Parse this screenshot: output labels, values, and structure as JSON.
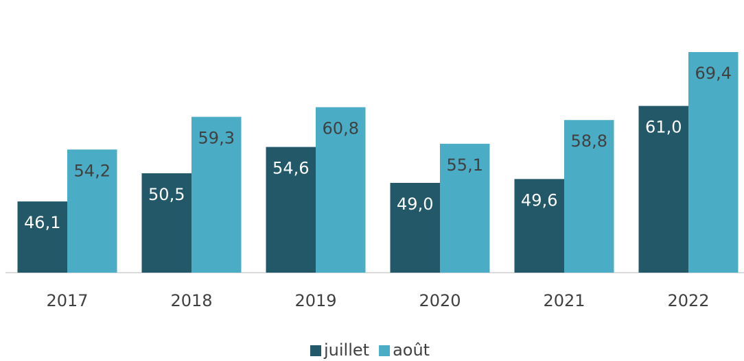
{
  "chart_data": {
    "type": "bar",
    "categories": [
      "2017",
      "2018",
      "2019",
      "2020",
      "2021",
      "2022"
    ],
    "series": [
      {
        "name": "juillet",
        "color": "#235868",
        "values": [
          46.1,
          50.5,
          54.6,
          49.0,
          49.6,
          61.0
        ],
        "value_labels": [
          "46,1",
          "50,5",
          "54,6",
          "49,0",
          "49,6",
          "61,0"
        ]
      },
      {
        "name": "août",
        "color": "#4bacc6",
        "values": [
          54.2,
          59.3,
          60.8,
          55.1,
          58.8,
          69.4
        ],
        "value_labels": [
          "54,2",
          "59,3",
          "60,8",
          "55,1",
          "58,8",
          "69,4"
        ]
      }
    ],
    "ylim": [
      35,
      75
    ],
    "legend": "bottom"
  }
}
